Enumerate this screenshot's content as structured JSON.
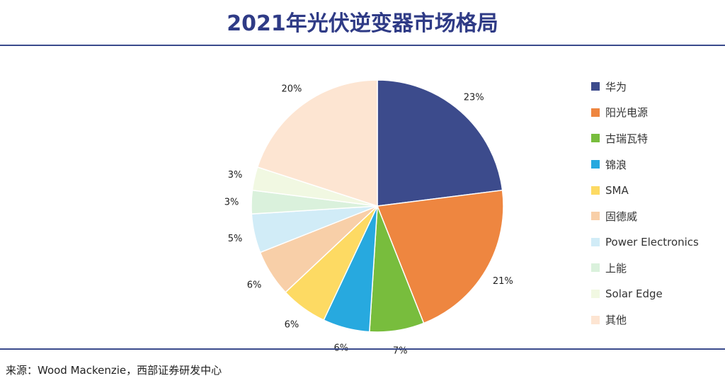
{
  "title": "2021年光伏逆变器市场格局",
  "source": "来源：Wood Mackenzie，西部证券研发中心",
  "chart_data": {
    "type": "pie",
    "title": "2021年光伏逆变器市场格局",
    "legend_position": "right",
    "slices": [
      {
        "label": "华为",
        "value": 23,
        "display": "23%",
        "color": "#3c4b8c"
      },
      {
        "label": "阳光电源",
        "value": 21,
        "display": "21%",
        "color": "#ee8640"
      },
      {
        "label": "古瑞瓦特",
        "value": 7,
        "display": "7%",
        "color": "#78bd3d"
      },
      {
        "label": "锦浪",
        "value": 6,
        "display": "6%",
        "color": "#27a9df"
      },
      {
        "label": "SMA",
        "value": 6,
        "display": "6%",
        "color": "#fdda63"
      },
      {
        "label": "固德威",
        "value": 6,
        "display": "6%",
        "color": "#f8cfa8"
      },
      {
        "label": "Power Electronics",
        "value": 5,
        "display": "5%",
        "color": "#d1ecf7"
      },
      {
        "label": "上能",
        "value": 3,
        "display": "3%",
        "color": "#daf1dc"
      },
      {
        "label": "Solar Edge",
        "value": 3,
        "display": "3%",
        "color": "#f1f8e2"
      },
      {
        "label": "其他",
        "value": 20,
        "display": "20%",
        "color": "#fde5d2"
      }
    ]
  }
}
